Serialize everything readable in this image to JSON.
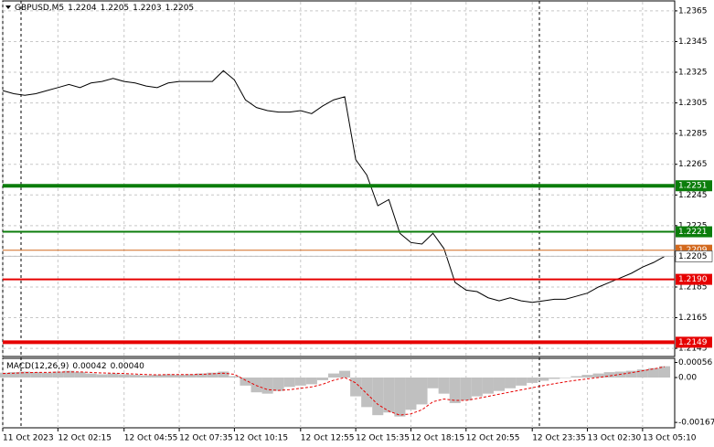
{
  "chart_data": [
    {
      "type": "line",
      "title": "GBPUSD,M5",
      "ohlc": [
        1.2204,
        1.2205,
        1.2203,
        1.2205
      ],
      "categories": [
        "11 Oct 2023",
        null,
        null,
        null,
        null,
        "12 Oct 02:15",
        null,
        null,
        null,
        null,
        null,
        "12 Oct 04:55",
        null,
        null,
        null,
        null,
        "12 Oct 07:35",
        null,
        null,
        null,
        null,
        "12 Oct 10:15",
        null,
        null,
        null,
        null,
        null,
        "12 Oct 12:55",
        null,
        null,
        null,
        null,
        "12 Oct 15:35",
        null,
        null,
        null,
        null,
        "12 Oct 18:15",
        null,
        null,
        null,
        null,
        "12 Oct 20:55",
        null,
        null,
        null,
        null,
        null,
        "12 Oct 23:35",
        null,
        null,
        null,
        null,
        "13 Oct 02:30",
        null,
        null,
        null,
        null,
        "13 Oct 05:10",
        null,
        null
      ],
      "series": [
        {
          "name": "GBPUSD",
          "color": "#000000",
          "values": [
            1.2313,
            1.2311,
            1.231,
            1.2311,
            1.2313,
            1.2315,
            1.2317,
            1.2315,
            1.2318,
            1.2319,
            1.2321,
            1.2319,
            1.2318,
            1.2316,
            1.2315,
            1.2318,
            1.2319,
            1.2319,
            1.2319,
            1.2319,
            1.2326,
            1.232,
            1.2307,
            1.2302,
            1.23,
            1.2299,
            1.2299,
            1.23,
            1.2298,
            1.2303,
            1.2307,
            1.2309,
            1.2268,
            1.2258,
            1.2238,
            1.2242,
            1.222,
            1.2214,
            1.2213,
            1.222,
            1.221,
            1.2188,
            1.2183,
            1.2182,
            1.2178,
            1.2176,
            1.2178,
            1.2176,
            1.2175,
            1.2176,
            1.2177,
            1.2177,
            1.2179,
            1.2181,
            1.2185,
            1.2188,
            1.2191,
            1.2194,
            1.2198,
            1.2201,
            1.2205
          ]
        }
      ],
      "levels": [
        {
          "value": 1.2251,
          "label": "1.2251",
          "color": "#0b7d0b",
          "width": 4
        },
        {
          "value": 1.2221,
          "label": "1.2221",
          "color": "#0b7d0b",
          "width": 2
        },
        {
          "value": 1.2209,
          "label": "1.2209",
          "color": "#d2691e",
          "width": 1
        },
        {
          "value": 1.2205,
          "label": "1.2205",
          "color": "#c0c0c0",
          "width": 1
        },
        {
          "value": 1.219,
          "label": "1.2190",
          "color": "#e60000",
          "width": 2
        },
        {
          "value": 1.2149,
          "label": "1.2149",
          "color": "#e60000",
          "width": 4
        }
      ],
      "ylim": [
        1.21397,
        1.23709
      ],
      "yticks": [
        1.2365,
        1.2345,
        1.2325,
        1.2305,
        1.2285,
        1.2265,
        1.2245,
        1.2225,
        1.2205,
        1.2185,
        1.2165,
        1.2145
      ],
      "grid": true
    },
    {
      "type": "macd",
      "title": "MACD(12,26,9)",
      "indicator_values": [
        0.00042,
        {
          "value": 0.0004,
          "label": "0.00040"
        }
      ],
      "series": [
        {
          "name": "MACD",
          "color": "#c0c0c0",
          "values": [
            0.00018,
            0.0002,
            0.00022,
            0.0002,
            0.00018,
            0.00022,
            0.00025,
            0.0002,
            0.00015,
            0.00012,
            0.00015,
            0.00012,
            0.0001,
            8e-05,
            0.0001,
            0.00012,
            0.0001,
            0.00012,
            0.00015,
            0.00018,
            0.00022,
            5e-05,
            -0.0003,
            -0.00055,
            -0.0006,
            -0.0005,
            -0.00035,
            -0.0003,
            -0.00025,
            -0.0001,
            0.00015,
            0.00025,
            -0.0007,
            -0.0011,
            -0.0014,
            -0.0013,
            -0.00145,
            -0.0012,
            -0.001,
            -0.0004,
            -0.0006,
            -0.00095,
            -0.00085,
            -0.0007,
            -0.0006,
            -0.0005,
            -0.0004,
            -0.0003,
            -0.0002,
            -0.00012,
            -5e-05,
            0,
            5e-05,
            0.0001,
            0.00015,
            0.0002,
            0.00022,
            0.00025,
            0.0003,
            0.00035,
            0.00042
          ]
        },
        {
          "name": "Signal",
          "color": "#e60000",
          "values": [
            0.00015,
            0.00016,
            0.00018,
            0.00019,
            0.00019,
            0.0002,
            0.00021,
            0.00021,
            0.00019,
            0.00017,
            0.00016,
            0.00015,
            0.00013,
            0.00011,
            0.0001,
            0.00011,
            0.00011,
            0.00011,
            0.00012,
            0.00014,
            0.00016,
            0.00012,
            -0.0001,
            -0.0003,
            -0.00045,
            -0.00048,
            -0.00045,
            -0.0004,
            -0.00035,
            -0.00025,
            -0.0001,
            0,
            -0.0002,
            -0.0006,
            -0.001,
            -0.00125,
            -0.0014,
            -0.00135,
            -0.0012,
            -0.0009,
            -0.0008,
            -0.00085,
            -0.00085,
            -0.00078,
            -0.0007,
            -0.00062,
            -0.00054,
            -0.00046,
            -0.00038,
            -0.0003,
            -0.00023,
            -0.00016,
            -0.0001,
            -5e-05,
            0,
            6e-05,
            0.00012,
            0.00018,
            0.00025,
            0.00032,
            0.0004
          ]
        }
      ],
      "ylim": [
        -0.00187,
        0.00068
      ],
      "yticks": [
        0.00056,
        {
          "value": 0,
          "label": "0.00"
        },
        -0.00167
      ]
    }
  ]
}
